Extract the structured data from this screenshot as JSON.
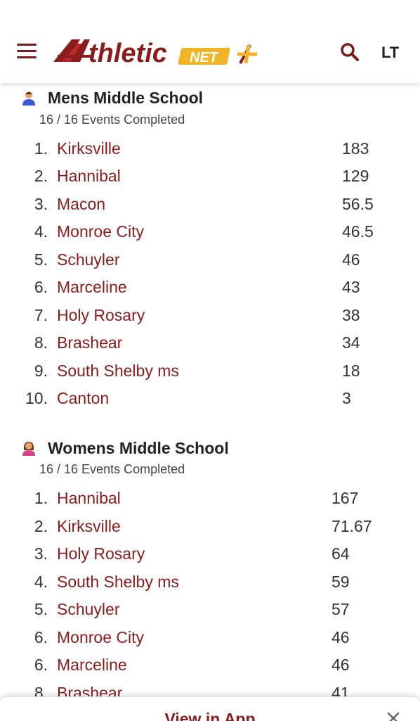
{
  "header": {
    "menu_icon": "hamburger-menu-icon",
    "logo_text": "thletic",
    "logo_badge": "NET",
    "search_icon": "search-icon",
    "language": "LT",
    "colors": {
      "brand": "#8a1c1c",
      "gold": "#f0b429"
    }
  },
  "sections": [
    {
      "title": "Mens Middle School",
      "events": "16 / 16  Events Completed",
      "teams": [
        {
          "rank": "1.",
          "name": "Kirksville",
          "score": "183"
        },
        {
          "rank": "2.",
          "name": "Hannibal",
          "score": "129"
        },
        {
          "rank": "3.",
          "name": "Macon",
          "score": "56.5"
        },
        {
          "rank": "4.",
          "name": "Monroe City",
          "score": "46.5"
        },
        {
          "rank": "5.",
          "name": "Schuyler",
          "score": "46"
        },
        {
          "rank": "6.",
          "name": "Marceline",
          "score": "43"
        },
        {
          "rank": "7.",
          "name": "Holy Rosary",
          "score": "38"
        },
        {
          "rank": "8.",
          "name": "Brashear",
          "score": "34"
        },
        {
          "rank": "9.",
          "name": "South Shelby ms",
          "score": "18"
        },
        {
          "rank": "10.",
          "name": "Canton",
          "score": "3"
        }
      ]
    },
    {
      "title": "Womens Middle School",
      "events": "16 / 16  Events Completed",
      "teams": [
        {
          "rank": "1.",
          "name": "Hannibal",
          "score": "167"
        },
        {
          "rank": "2.",
          "name": "Kirksville",
          "score": "71.67"
        },
        {
          "rank": "3.",
          "name": "Holy Rosary",
          "score": "64"
        },
        {
          "rank": "4.",
          "name": "South Shelby ms",
          "score": "59"
        },
        {
          "rank": "5.",
          "name": "Schuyler",
          "score": "57"
        },
        {
          "rank": "6.",
          "name": "Monroe City",
          "score": "46"
        },
        {
          "rank": "6.",
          "name": "Marceline",
          "score": "46"
        },
        {
          "rank": "8.",
          "name": "Brashear",
          "score": "41"
        }
      ]
    }
  ],
  "bottom_bar": {
    "label": "View in App",
    "close_icon": "close-icon"
  }
}
